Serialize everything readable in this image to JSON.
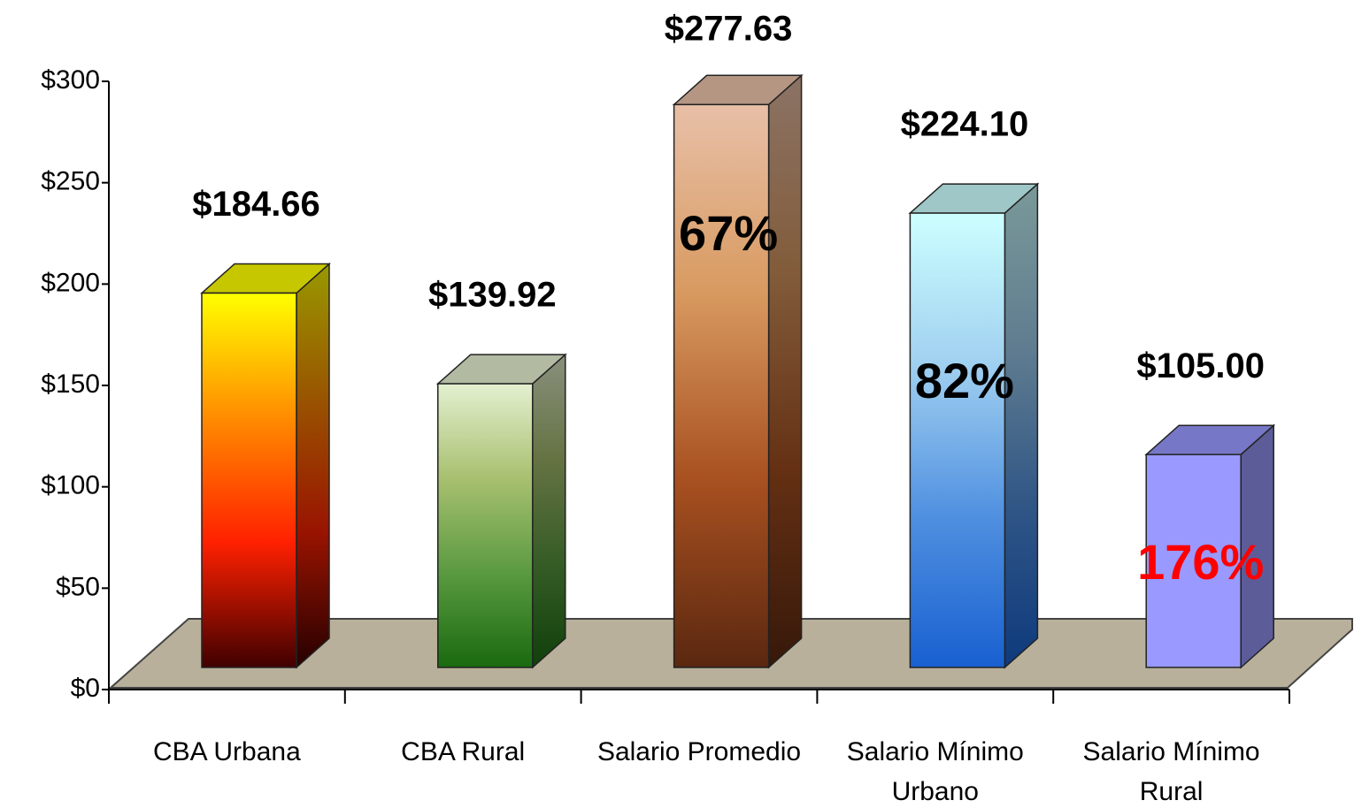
{
  "chart_data": {
    "type": "bar3d",
    "categories": [
      "CBA Urbana",
      "CBA Rural",
      "Salario Promedio",
      "Salario Mínimo Urbano",
      "Salario Mínimo Rural"
    ],
    "values": [
      184.66,
      139.92,
      277.63,
      224.1,
      105.0
    ],
    "value_labels": [
      "$184.66",
      "$139.92",
      "$277.63",
      "$224.10",
      "$105.00"
    ],
    "colors": [
      [
        "#ffff00",
        "#ff8c00",
        "#ff2000",
        "#400000"
      ],
      [
        "#e4f0d0",
        "#a8c070",
        "#5a9a40",
        "#1a6a10"
      ],
      [
        "#e8c0a8",
        "#d89a60",
        "#a85020",
        "#5a2810"
      ],
      [
        "#ccffff",
        "#a0d0f0",
        "#5090e0",
        "#1860d0"
      ],
      [
        "#9999ff",
        "#9999ff",
        "#9999ff",
        "#9999ff"
      ]
    ],
    "ylim": [
      0,
      300
    ],
    "yticks": [
      {
        "value": 0,
        "label": "$0"
      },
      {
        "value": 50,
        "label": "$50"
      },
      {
        "value": 100,
        "label": "$100"
      },
      {
        "value": 150,
        "label": "$150"
      },
      {
        "value": 200,
        "label": "$200"
      },
      {
        "value": 250,
        "label": "$250"
      },
      {
        "value": 300,
        "label": "$300"
      }
    ],
    "annotations": [
      {
        "bar": 2,
        "text": "67%",
        "color": "#000000"
      },
      {
        "bar": 3,
        "text": "82%",
        "color": "#000000"
      },
      {
        "bar": 4,
        "text": "176%",
        "color": "#ff0000"
      }
    ]
  }
}
